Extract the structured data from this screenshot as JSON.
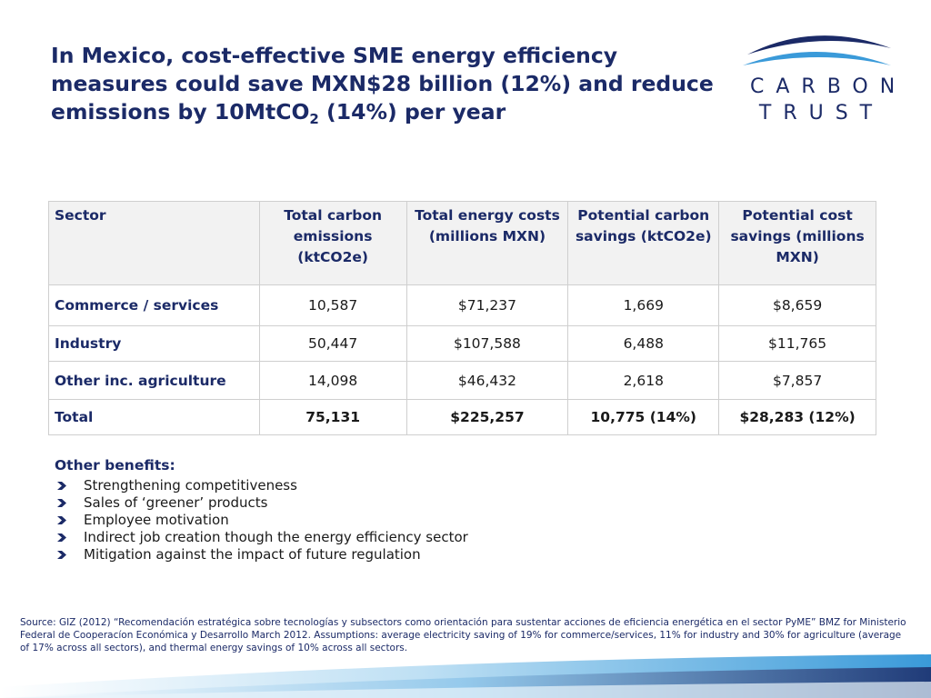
{
  "title": {
    "main": "In Mexico, cost-effective SME energy efficiency measures could save MXN$28 billion (12%) and reduce emissions by 10MtCO",
    "subscript": "2",
    "suffix": " (14%) per year"
  },
  "logo": {
    "line1": "CARBON",
    "line2": "TRUST"
  },
  "table": {
    "headers": {
      "sector": "Sector",
      "emissions": "Total carbon emissions (ktCO2e)",
      "energy_costs": "Total energy costs (millions MXN)",
      "carbon_savings": "Potential carbon savings (ktCO2e)",
      "cost_savings": "Potential cost savings (millions MXN)"
    },
    "rows": [
      {
        "sector": "Commerce / services",
        "emissions": "10,587",
        "energy_costs": "$71,237",
        "carbon_savings": "1,669",
        "cost_savings": "$8,659"
      },
      {
        "sector": "Industry",
        "emissions": "50,447",
        "energy_costs": "$107,588",
        "carbon_savings": "6,488",
        "cost_savings": "$11,765"
      },
      {
        "sector": "Other inc. agriculture",
        "emissions": "14,098",
        "energy_costs": "$46,432",
        "carbon_savings": "2,618",
        "cost_savings": "$7,857"
      },
      {
        "sector": "Total",
        "emissions": "75,131",
        "energy_costs": "$225,257",
        "carbon_savings": "10,775 (14%)",
        "cost_savings": "$28,283 (12%)"
      }
    ]
  },
  "benefits": {
    "title": "Other benefits:",
    "items": [
      "Strengthening competitiveness",
      "Sales of ‘greener’ products",
      "Employee motivation",
      "Indirect job creation though the energy efficiency sector",
      "Mitigation against the impact of future regulation"
    ]
  },
  "source": "Source: GIZ (2012) “Recomendación estratégica sobre tecnologías y subsectors como orientación para sustentar acciones de eficiencia energética en el sector PyME” BMZ for Ministerio Federal de Cooperacíon Económica y Desarrollo March 2012. Assumptions: average electricity saving of 19% for commerce/services, 11% for industry and 30% for agriculture (average of 17% across all sectors), and thermal energy savings of 10% across all sectors.",
  "colors": {
    "navy": "#1b2a67",
    "sky": "#3a9ad9",
    "header_bg": "#f2f2f2"
  }
}
